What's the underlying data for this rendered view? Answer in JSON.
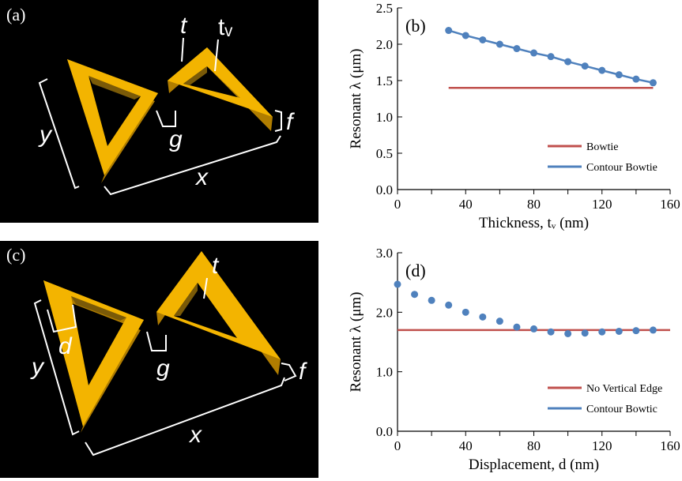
{
  "panels": [
    {
      "label": "(a)",
      "annotations": [
        "t",
        "tᵥ",
        "y",
        "g",
        "x",
        "f"
      ]
    },
    {
      "label": "(c)",
      "annotations": [
        "t",
        "d",
        "y",
        "g",
        "x",
        "f"
      ]
    }
  ],
  "chart_data": [
    {
      "type": "line",
      "panel_label": "(b)",
      "xlabel": "Thickness, tᵥ (nm)",
      "ylabel": "Resonant λ (μm)",
      "xlim": [
        0,
        160
      ],
      "xticks": [
        0,
        40,
        80,
        120,
        160
      ],
      "xminorticks": [
        20,
        60,
        100,
        140
      ],
      "ylim": [
        0,
        2.5
      ],
      "yticks": [
        {
          "value": 0,
          "label": "0.0"
        },
        0.5,
        {
          "value": 1,
          "label": "1.0"
        },
        1.5,
        {
          "value": 2,
          "label": "2.0"
        },
        2.5
      ],
      "legend": "lower right",
      "series": [
        {
          "name": "Bowtie",
          "color": "#c0504d",
          "mode": "lines",
          "x": [
            30,
            150
          ],
          "values": [
            1.4,
            1.4
          ]
        },
        {
          "name": "Contour Bowtie",
          "color": "#4f81bd",
          "mode": "lines+markers",
          "x": [
            30,
            40,
            50,
            60,
            70,
            80,
            90,
            100,
            110,
            120,
            130,
            140,
            150
          ],
          "values": [
            2.19,
            2.12,
            2.06,
            2.0,
            1.94,
            1.88,
            1.83,
            1.76,
            1.7,
            1.64,
            1.58,
            1.52,
            1.47
          ]
        }
      ]
    },
    {
      "type": "line",
      "panel_label": "(d)",
      "xlabel": "Displacement, d (nm)",
      "ylabel": "Resonant λ (μm)",
      "xlim": [
        0,
        160
      ],
      "xticks": [
        0,
        40,
        80,
        120,
        160
      ],
      "xminorticks": [
        20,
        60,
        100,
        140
      ],
      "ylim": [
        0,
        3
      ],
      "yticks": [
        {
          "value": 0,
          "label": "0.0"
        },
        {
          "value": 1,
          "label": "1.0"
        },
        {
          "value": 2,
          "label": "2.0"
        },
        {
          "value": 3,
          "label": "3.0"
        }
      ],
      "legend": "lower right",
      "series": [
        {
          "name": "No Vertical Edge",
          "color": "#c0504d",
          "mode": "lines",
          "x": [
            0,
            160
          ],
          "values": [
            1.7,
            1.7
          ]
        },
        {
          "name": "Contour Bowtic",
          "color": "#4f81bd",
          "mode": "markers",
          "x": [
            0,
            10,
            20,
            30,
            40,
            50,
            60,
            70,
            80,
            90,
            100,
            110,
            120,
            130,
            140,
            150
          ],
          "values": [
            2.47,
            2.3,
            2.2,
            2.12,
            2.0,
            1.92,
            1.85,
            1.75,
            1.72,
            1.67,
            1.64,
            1.65,
            1.67,
            1.68,
            1.69,
            1.7
          ]
        }
      ]
    }
  ]
}
